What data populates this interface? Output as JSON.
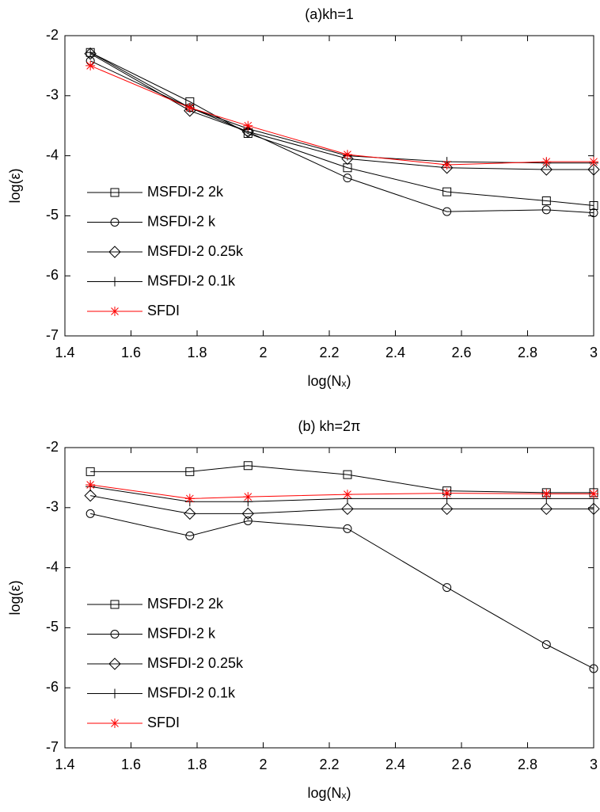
{
  "chart_data": [
    {
      "type": "line",
      "title": "(a)kh=1",
      "x_label": "log(Nₓ)",
      "y_label": "log(ε)",
      "x": [
        1.477,
        1.778,
        1.954,
        2.255,
        2.556,
        2.857,
        3.0
      ],
      "xlim": [
        1.4,
        3
      ],
      "xticks": [
        1.4,
        1.6,
        1.8,
        2,
        2.2,
        2.4,
        2.6,
        2.8,
        3
      ],
      "ylim": [
        -7,
        -2
      ],
      "yticks": [
        -7,
        -6,
        -5,
        -4,
        -3,
        -2
      ],
      "legend": "lower left",
      "series": [
        {
          "name": "MSFDI-2 2k",
          "color": "#000000",
          "marker": "square",
          "values": [
            -2.28,
            -3.1,
            -3.63,
            -4.2,
            -4.6,
            -4.75,
            -4.83
          ]
        },
        {
          "name": "MSFDI-2 k",
          "color": "#000000",
          "marker": "circle",
          "values": [
            -2.42,
            -3.2,
            -3.6,
            -4.37,
            -4.93,
            -4.9,
            -4.95
          ]
        },
        {
          "name": "MSFDI-2 0.25k",
          "color": "#000000",
          "marker": "diamond",
          "values": [
            -2.3,
            -3.25,
            -3.6,
            -4.05,
            -4.2,
            -4.23,
            -4.23
          ]
        },
        {
          "name": "MSFDI-2 0.1k",
          "color": "#000000",
          "marker": "plus",
          "values": [
            -2.28,
            -3.2,
            -3.55,
            -4.0,
            -4.1,
            -4.12,
            -4.12
          ]
        },
        {
          "name": "SFDI",
          "color": "#ff0000",
          "marker": "star",
          "values": [
            -2.5,
            -3.2,
            -3.5,
            -3.98,
            -4.15,
            -4.1,
            -4.1
          ]
        }
      ]
    },
    {
      "type": "line",
      "title": "(b) kh=2π",
      "x_label": "log(Nₓ)",
      "y_label": "log(ε)",
      "x": [
        1.477,
        1.778,
        1.954,
        2.255,
        2.556,
        2.857,
        3.0
      ],
      "xlim": [
        1.4,
        3
      ],
      "xticks": [
        1.4,
        1.6,
        1.8,
        2,
        2.2,
        2.4,
        2.6,
        2.8,
        3
      ],
      "ylim": [
        -7,
        -2
      ],
      "yticks": [
        -7,
        -6,
        -5,
        -4,
        -3,
        -2
      ],
      "legend": "lower left",
      "series": [
        {
          "name": "MSFDI-2 2k",
          "color": "#000000",
          "marker": "square",
          "values": [
            -2.4,
            -2.4,
            -2.3,
            -2.45,
            -2.72,
            -2.75,
            -2.75
          ]
        },
        {
          "name": "MSFDI-2 k",
          "color": "#000000",
          "marker": "circle",
          "values": [
            -3.1,
            -3.47,
            -3.22,
            -3.35,
            -4.33,
            -5.28,
            -5.68
          ]
        },
        {
          "name": "MSFDI-2 0.25k",
          "color": "#000000",
          "marker": "diamond",
          "values": [
            -2.8,
            -3.1,
            -3.1,
            -3.02,
            -3.02,
            -3.02,
            -3.02
          ]
        },
        {
          "name": "MSFDI-2 0.1k",
          "color": "#000000",
          "marker": "plus",
          "values": [
            -2.65,
            -2.9,
            -2.9,
            -2.85,
            -2.85,
            -2.85,
            -2.85
          ]
        },
        {
          "name": "SFDI",
          "color": "#ff0000",
          "marker": "star",
          "values": [
            -2.62,
            -2.85,
            -2.82,
            -2.78,
            -2.76,
            -2.77,
            -2.77
          ]
        }
      ]
    }
  ]
}
